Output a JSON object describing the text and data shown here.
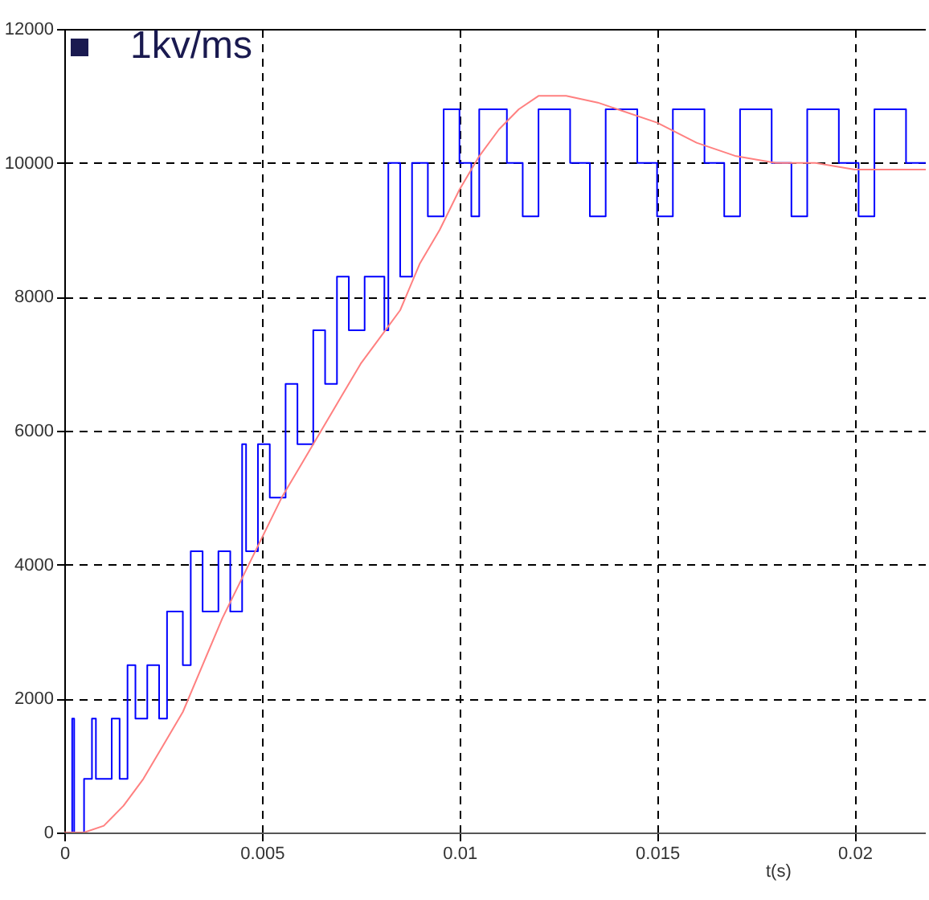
{
  "chart_data": {
    "type": "line",
    "xlabel": "t(s)",
    "annotations": [
      "1kv/ms"
    ],
    "xlim": [
      0,
      0.0218
    ],
    "xticks": [
      0,
      0.005,
      0.01,
      0.015,
      0.02
    ],
    "ylim": [
      0,
      12000
    ],
    "yticks": [
      0,
      2000,
      4000,
      6000,
      8000,
      10000,
      12000
    ],
    "grid": true,
    "marker": "none",
    "line_style": "solid",
    "series": [
      {
        "color": "#0000ff",
        "x": [
          0,
          0.0002,
          0.0002,
          0.00025,
          0.00025,
          0.0005,
          0.0005,
          0.0007,
          0.0007,
          0.0008,
          0.0008,
          0.0012,
          0.0012,
          0.0014,
          0.0014,
          0.0016,
          0.0016,
          0.0018,
          0.0018,
          0.0021,
          0.0021,
          0.0024,
          0.0024,
          0.0026,
          0.0026,
          0.003,
          0.003,
          0.0032,
          0.0032,
          0.0035,
          0.0035,
          0.0039,
          0.0039,
          0.0042,
          0.0042,
          0.0045,
          0.0045,
          0.0046,
          0.0046,
          0.0049,
          0.0049,
          0.0052,
          0.0052,
          0.0056,
          0.0056,
          0.0059,
          0.0059,
          0.0063,
          0.0063,
          0.0066,
          0.0066,
          0.0069,
          0.0069,
          0.0072,
          0.0072,
          0.0076,
          0.0076,
          0.0081,
          0.0081,
          0.0082,
          0.0082,
          0.0085,
          0.0085,
          0.0088,
          0.0088,
          0.0092,
          0.0092,
          0.0096,
          0.0096,
          0.01,
          0.01,
          0.0103,
          0.0103,
          0.0105,
          0.0105,
          0.0112,
          0.0112,
          0.0116,
          0.0116,
          0.012,
          0.012,
          0.0128,
          0.0128,
          0.0133,
          0.0133,
          0.0137,
          0.0137,
          0.0145,
          0.0145,
          0.015,
          0.015,
          0.0154,
          0.0154,
          0.0162,
          0.0162,
          0.0167,
          0.0167,
          0.0171,
          0.0171,
          0.0179,
          0.0179,
          0.0184,
          0.0184,
          0.0188,
          0.0188,
          0.0196,
          0.0196,
          0.0201,
          0.0201,
          0.0205,
          0.0205,
          0.0213,
          0.0213,
          0.0218
        ],
        "values": [
          0,
          0,
          1700,
          1700,
          0,
          0,
          800,
          800,
          1700,
          1700,
          800,
          800,
          1700,
          1700,
          800,
          800,
          2500,
          2500,
          1700,
          1700,
          2500,
          2500,
          1700,
          1700,
          3300,
          3300,
          2500,
          2500,
          4200,
          4200,
          3300,
          3300,
          4200,
          4200,
          3300,
          3300,
          5800,
          5800,
          4200,
          4200,
          5800,
          5800,
          5000,
          5000,
          6700,
          6700,
          5800,
          5800,
          7500,
          7500,
          6700,
          6700,
          8300,
          8300,
          7500,
          7500,
          8300,
          8300,
          7500,
          7500,
          10000,
          10000,
          8300,
          8300,
          10000,
          10000,
          9200,
          9200,
          10800,
          10800,
          10000,
          10000,
          9200,
          9200,
          10800,
          10800,
          10000,
          10000,
          9200,
          9200,
          10800,
          10800,
          10000,
          10000,
          9200,
          9200,
          10800,
          10800,
          10000,
          10000,
          9200,
          9200,
          10800,
          10800,
          10000,
          10000,
          9200,
          9200,
          10800,
          10800,
          10000,
          10000,
          9200,
          9200,
          10800,
          10800,
          10000,
          10000,
          9200,
          9200,
          10800,
          10800,
          10000,
          10000
        ]
      },
      {
        "color": "#ff8080",
        "x": [
          0,
          0.0005,
          0.001,
          0.0015,
          0.002,
          0.0025,
          0.003,
          0.0035,
          0.004,
          0.0045,
          0.005,
          0.0055,
          0.006,
          0.0065,
          0.007,
          0.0075,
          0.008,
          0.0085,
          0.009,
          0.0095,
          0.01,
          0.0105,
          0.011,
          0.0115,
          0.012,
          0.0127,
          0.0135,
          0.014,
          0.015,
          0.016,
          0.017,
          0.018,
          0.019,
          0.02,
          0.0218
        ],
        "values": [
          0,
          0,
          100,
          400,
          800,
          1300,
          1800,
          2500,
          3200,
          3800,
          4400,
          5000,
          5500,
          6000,
          6500,
          7000,
          7400,
          7800,
          8500,
          9000,
          9600,
          10100,
          10500,
          10800,
          11000,
          11000,
          10900,
          10800,
          10600,
          10300,
          10100,
          10000,
          10000,
          9900,
          9900
        ]
      }
    ]
  }
}
